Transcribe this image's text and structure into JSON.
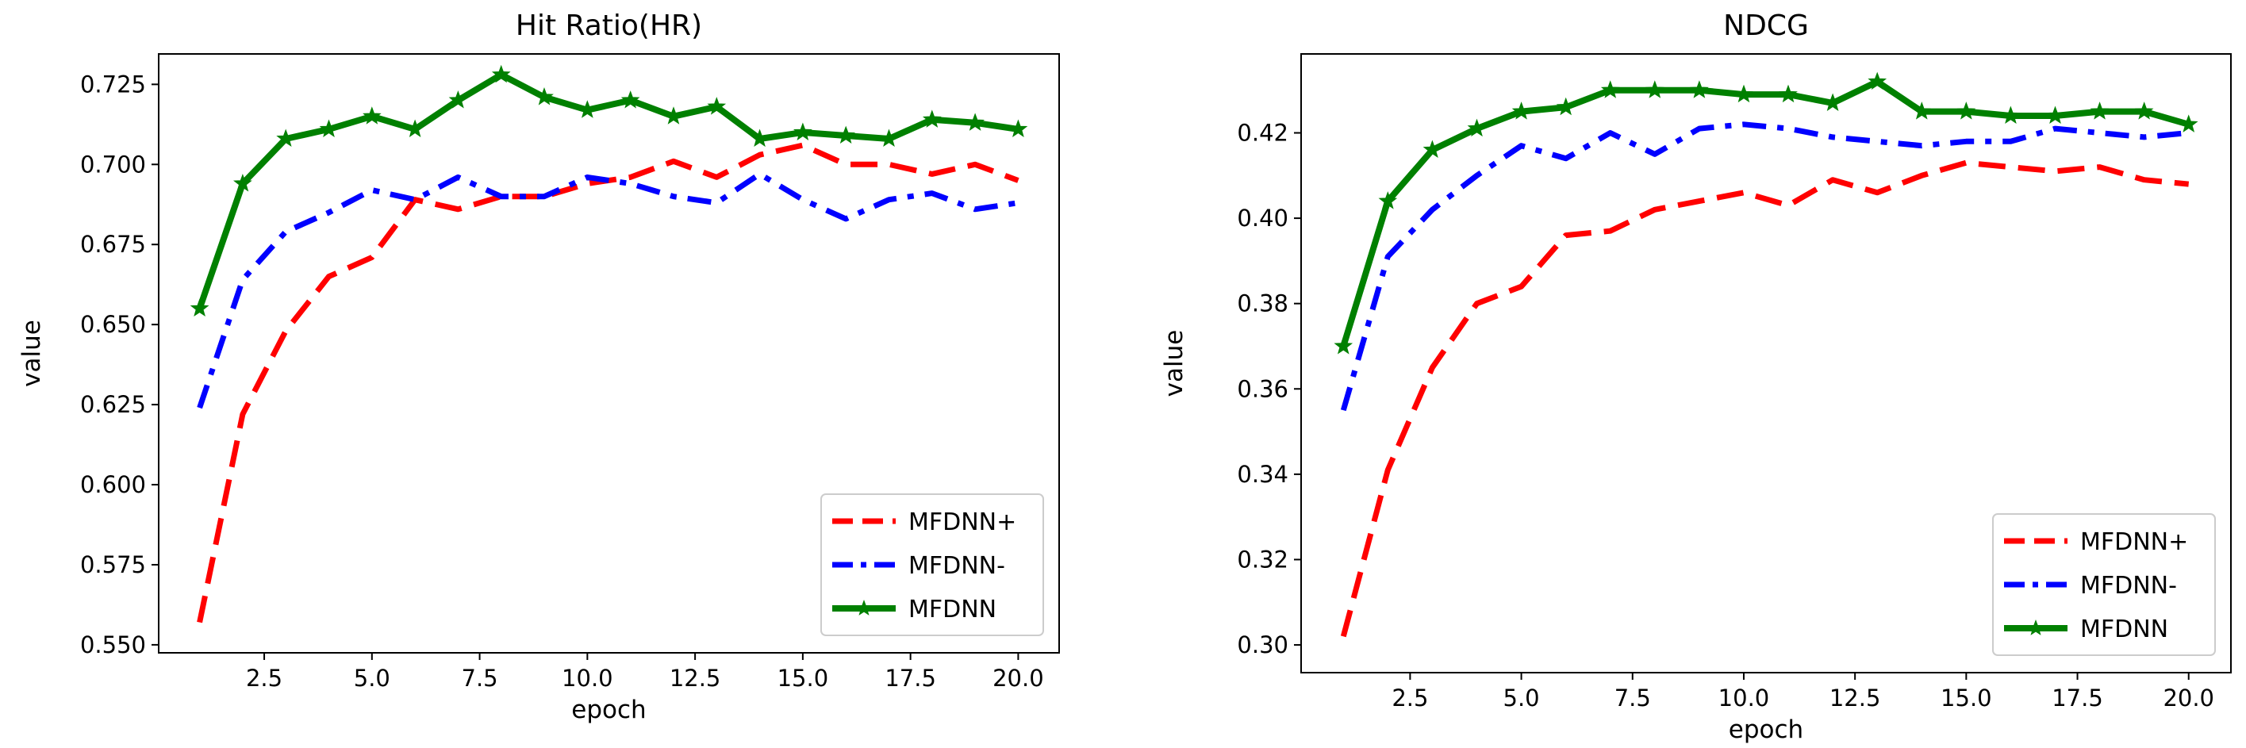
{
  "chart_data": [
    {
      "type": "line",
      "title": "Hit Ratio(HR)",
      "xlabel": "epoch",
      "ylabel": "value",
      "xlim": [
        0.05,
        20.95
      ],
      "ylim": [
        0.5475,
        0.7345
      ],
      "xticks": [
        2.5,
        5.0,
        7.5,
        10.0,
        12.5,
        15.0,
        17.5,
        20.0
      ],
      "xtick_labels": [
        "2.5",
        "5.0",
        "7.5",
        "10.0",
        "12.5",
        "15.0",
        "17.5",
        "20.0"
      ],
      "yticks": [
        0.55,
        0.575,
        0.6,
        0.625,
        0.65,
        0.675,
        0.7,
        0.725
      ],
      "ytick_labels": [
        "0.550",
        "0.575",
        "0.600",
        "0.625",
        "0.650",
        "0.675",
        "0.700",
        "0.725"
      ],
      "legend": {
        "position": "lower right"
      },
      "x": [
        1,
        2,
        3,
        4,
        5,
        6,
        7,
        8,
        9,
        10,
        11,
        12,
        13,
        14,
        15,
        16,
        17,
        18,
        19,
        20
      ],
      "series": [
        {
          "name": "MFDNN+",
          "color": "#ff0000",
          "linestyle": "dashed",
          "marker": "none",
          "values": [
            0.557,
            0.622,
            0.648,
            0.665,
            0.671,
            0.689,
            0.686,
            0.69,
            0.69,
            0.694,
            0.696,
            0.701,
            0.696,
            0.703,
            0.706,
            0.7,
            0.7,
            0.697,
            0.7,
            0.695
          ]
        },
        {
          "name": "MFDNN-",
          "color": "#0000ff",
          "linestyle": "dashdot",
          "marker": "none",
          "values": [
            0.624,
            0.664,
            0.679,
            0.685,
            0.692,
            0.689,
            0.696,
            0.69,
            0.69,
            0.696,
            0.694,
            0.69,
            0.688,
            0.697,
            0.689,
            0.683,
            0.689,
            0.691,
            0.686,
            0.688
          ]
        },
        {
          "name": "MFDNN",
          "color": "#008000",
          "linestyle": "solid",
          "marker": "star",
          "values": [
            0.655,
            0.694,
            0.708,
            0.711,
            0.715,
            0.711,
            0.72,
            0.728,
            0.721,
            0.717,
            0.72,
            0.715,
            0.718,
            0.708,
            0.71,
            0.709,
            0.708,
            0.714,
            0.713,
            0.711
          ]
        }
      ]
    },
    {
      "type": "line",
      "title": "NDCG",
      "xlabel": "epoch",
      "ylabel": "value",
      "xlim": [
        0.05,
        20.95
      ],
      "ylim": [
        0.2935,
        0.4385
      ],
      "xticks": [
        2.5,
        5.0,
        7.5,
        10.0,
        12.5,
        15.0,
        17.5,
        20.0
      ],
      "xtick_labels": [
        "2.5",
        "5.0",
        "7.5",
        "10.0",
        "12.5",
        "15.0",
        "17.5",
        "20.0"
      ],
      "yticks": [
        0.3,
        0.32,
        0.34,
        0.36,
        0.38,
        0.4,
        0.42
      ],
      "ytick_labels": [
        "0.30",
        "0.32",
        "0.34",
        "0.36",
        "0.38",
        "0.40",
        "0.42"
      ],
      "legend": {
        "position": "lower right"
      },
      "x": [
        1,
        2,
        3,
        4,
        5,
        6,
        7,
        8,
        9,
        10,
        11,
        12,
        13,
        14,
        15,
        16,
        17,
        18,
        19,
        20
      ],
      "series": [
        {
          "name": "MFDNN+",
          "color": "#ff0000",
          "linestyle": "dashed",
          "marker": "none",
          "values": [
            0.302,
            0.341,
            0.365,
            0.38,
            0.384,
            0.396,
            0.397,
            0.402,
            0.404,
            0.406,
            0.403,
            0.409,
            0.406,
            0.41,
            0.413,
            0.412,
            0.411,
            0.412,
            0.409,
            0.408
          ]
        },
        {
          "name": "MFDNN-",
          "color": "#0000ff",
          "linestyle": "dashdot",
          "marker": "none",
          "values": [
            0.355,
            0.391,
            0.402,
            0.41,
            0.417,
            0.414,
            0.42,
            0.415,
            0.421,
            0.422,
            0.421,
            0.419,
            0.418,
            0.417,
            0.418,
            0.418,
            0.421,
            0.42,
            0.419,
            0.42
          ]
        },
        {
          "name": "MFDNN",
          "color": "#008000",
          "linestyle": "solid",
          "marker": "star",
          "values": [
            0.37,
            0.404,
            0.416,
            0.421,
            0.425,
            0.426,
            0.43,
            0.43,
            0.43,
            0.429,
            0.429,
            0.427,
            0.432,
            0.425,
            0.425,
            0.424,
            0.424,
            0.425,
            0.425,
            0.422
          ]
        }
      ]
    }
  ]
}
